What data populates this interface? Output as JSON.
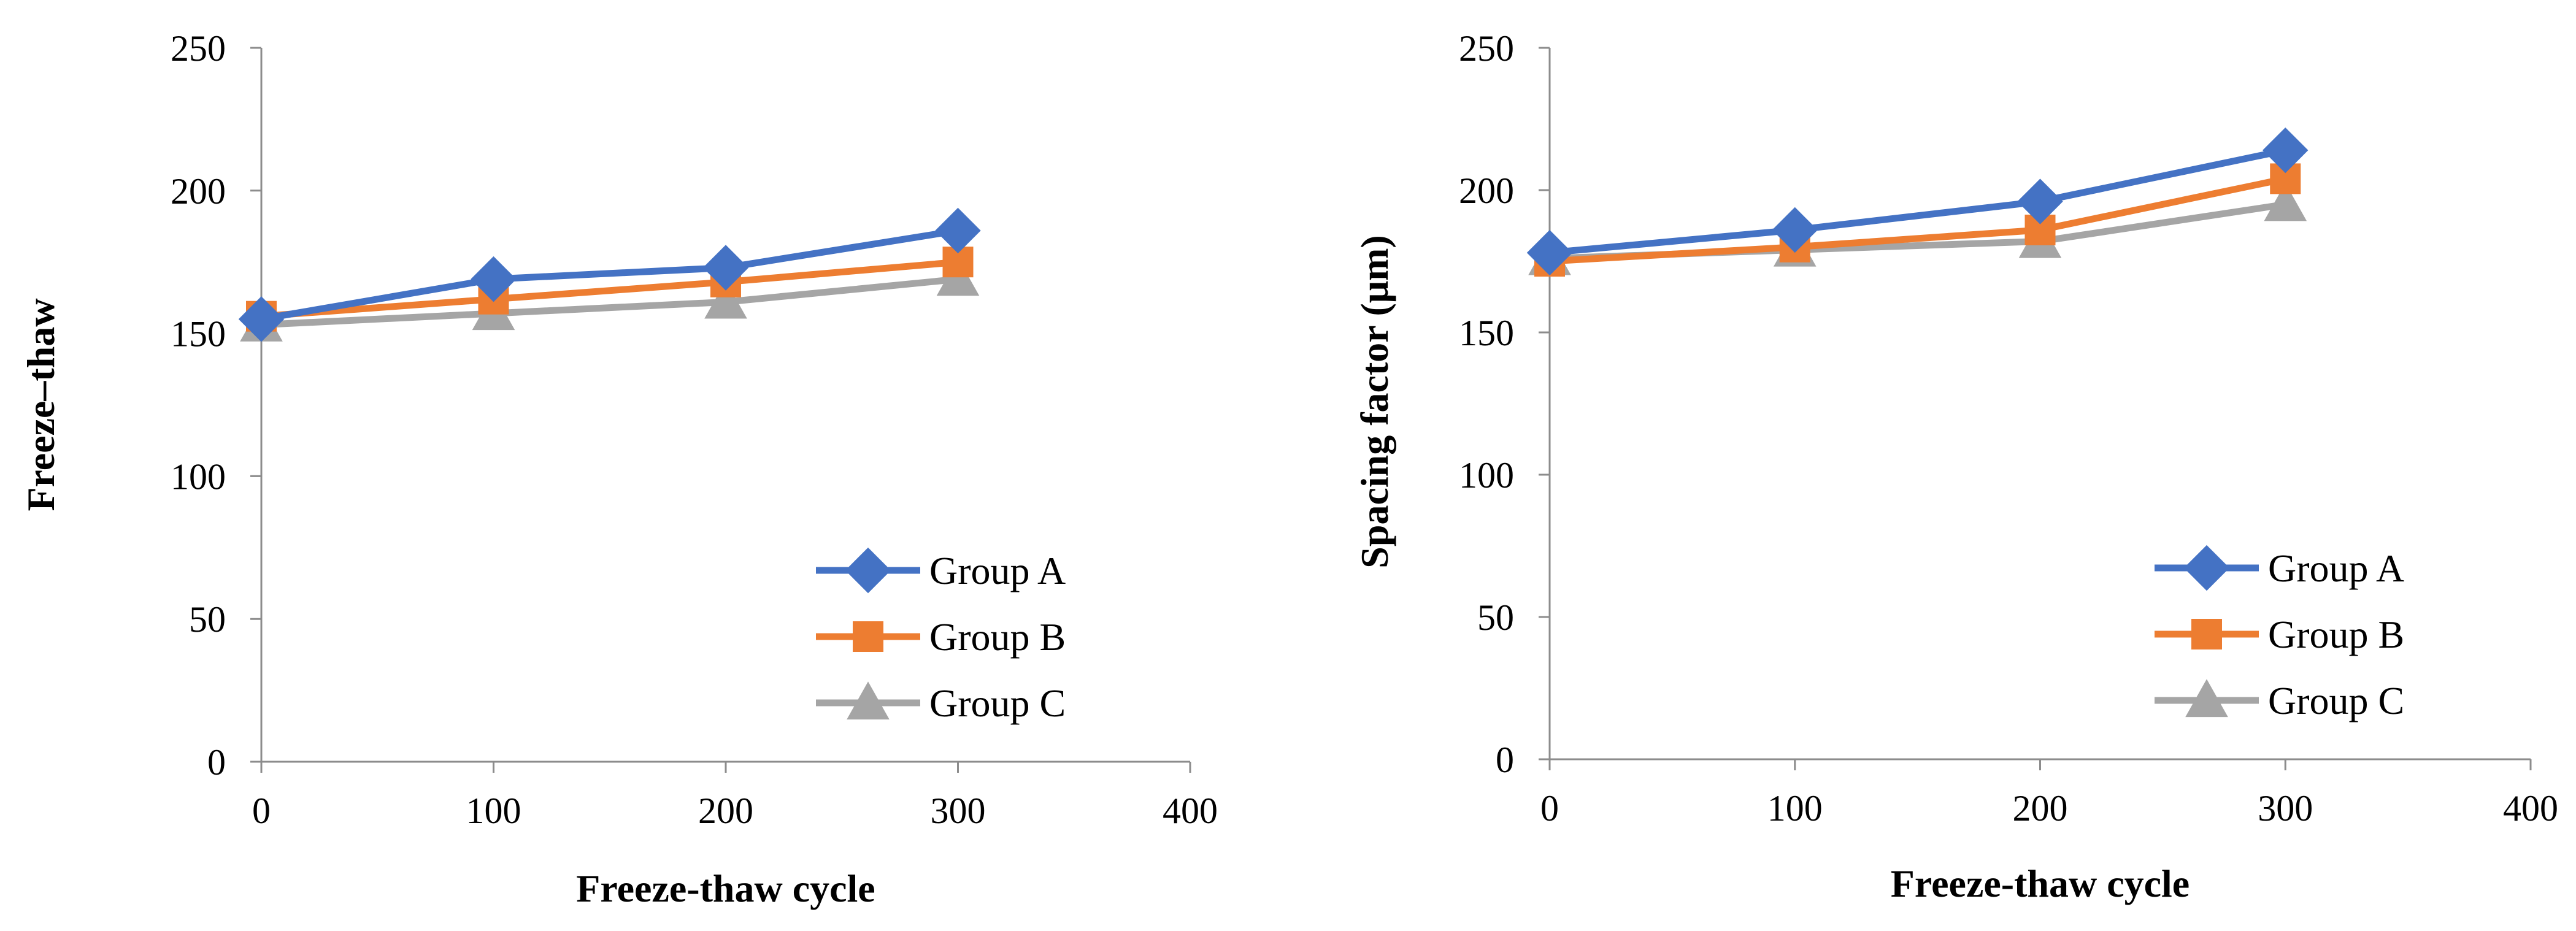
{
  "chart_data": [
    {
      "type": "line",
      "title": "",
      "xlabel": "Freeze-thaw cycle",
      "ylabel": "Freeze–thaw",
      "x": [
        0,
        100,
        200,
        300
      ],
      "xlim": [
        0,
        400
      ],
      "ylim": [
        0,
        250
      ],
      "xticks": [
        0,
        100,
        200,
        300,
        400
      ],
      "yticks": [
        0,
        50,
        100,
        150,
        200,
        250
      ],
      "grid": false,
      "legend_position": "bottom-right",
      "series": [
        {
          "name": "Group A",
          "color": "#4472C4",
          "marker": "diamond",
          "values": [
            155,
            169,
            173,
            186
          ]
        },
        {
          "name": "Group B",
          "color": "#ED7D31",
          "marker": "square",
          "values": [
            156,
            162,
            168,
            175
          ]
        },
        {
          "name": "Group C",
          "color": "#A5A5A5",
          "marker": "triangle",
          "values": [
            153,
            157,
            161,
            169
          ]
        }
      ]
    },
    {
      "type": "line",
      "title": "",
      "xlabel": "Freeze-thaw cycle",
      "ylabel": "Spacing factor (μm)",
      "x": [
        0,
        100,
        200,
        300
      ],
      "xlim": [
        0,
        400
      ],
      "ylim": [
        0,
        250
      ],
      "xticks": [
        0,
        100,
        200,
        300,
        400
      ],
      "yticks": [
        0,
        50,
        100,
        150,
        200,
        250
      ],
      "grid": false,
      "legend_position": "bottom-right",
      "series": [
        {
          "name": "Group A",
          "color": "#4472C4",
          "marker": "diamond",
          "values": [
            178,
            186,
            196,
            214
          ]
        },
        {
          "name": "Group B",
          "color": "#ED7D31",
          "marker": "square",
          "values": [
            175,
            180,
            186,
            204
          ]
        },
        {
          "name": "Group C",
          "color": "#A5A5A5",
          "marker": "triangle",
          "values": [
            176,
            179,
            182,
            195
          ]
        }
      ]
    }
  ]
}
